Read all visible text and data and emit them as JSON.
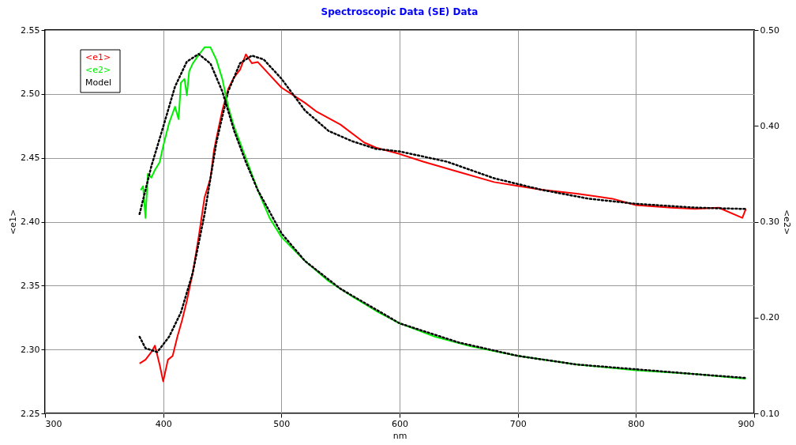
{
  "chart_data": {
    "type": "line",
    "title": "Spectroscopic Data (SE) Data",
    "xlabel": "nm",
    "ylabel": "<e1>",
    "y2label": "<e2>",
    "xlim": [
      300,
      900
    ],
    "xticks": [
      300,
      400,
      500,
      600,
      700,
      800,
      900
    ],
    "ylim": [
      2.25,
      2.55
    ],
    "yticks": [
      {
        "value": 2.25,
        "label": "2.25"
      },
      {
        "value": 2.3,
        "label": "2.30"
      },
      {
        "value": 2.35,
        "label": "2.35"
      },
      {
        "value": 2.4,
        "label": "2.40"
      },
      {
        "value": 2.45,
        "label": "2.45"
      },
      {
        "value": 2.5,
        "label": "2.50"
      },
      {
        "value": 2.55,
        "label": "2.55"
      }
    ],
    "y2lim": [
      0.1,
      0.5
    ],
    "y2ticks": [
      {
        "value": 0.1,
        "label": "0.10"
      },
      {
        "value": 0.2,
        "label": "0.20"
      },
      {
        "value": 0.3,
        "label": "0.30"
      },
      {
        "value": 0.4,
        "label": "0.40"
      },
      {
        "value": 0.5,
        "label": "0.50"
      }
    ],
    "grid": true,
    "legend": "top left",
    "marker": "none",
    "series": [
      {
        "name": "<e1>",
        "color": "#ff0000",
        "line_style": "solid",
        "x": [
          380,
          385,
          390,
          393,
          397,
          400,
          404,
          408,
          412,
          416,
          420,
          425,
          430,
          435,
          440,
          443,
          447,
          450,
          455,
          460,
          465,
          470,
          475,
          480,
          490,
          500,
          510,
          520,
          530,
          550,
          570,
          580,
          600,
          620,
          650,
          680,
          700,
          720,
          750,
          780,
          800,
          830,
          850,
          870,
          890,
          893
        ],
        "values": [
          2.289,
          2.292,
          2.298,
          2.303,
          2.288,
          2.275,
          2.292,
          2.295,
          2.31,
          2.323,
          2.338,
          2.36,
          2.388,
          2.419,
          2.434,
          2.456,
          2.474,
          2.487,
          2.504,
          2.513,
          2.519,
          2.531,
          2.524,
          2.525,
          2.515,
          2.505,
          2.499,
          2.493,
          2.486,
          2.476,
          2.462,
          2.458,
          2.453,
          2.447,
          2.439,
          2.431,
          2.428,
          2.425,
          2.422,
          2.418,
          2.413,
          2.411,
          2.41,
          2.411,
          2.403,
          2.41
        ]
      },
      {
        "name": "<e2>",
        "color": "#00ee00",
        "line_style": "solid",
        "axis": "y2",
        "x": [
          381,
          383,
          385,
          387,
          390,
          393,
          397,
          400,
          405,
          410,
          413,
          415,
          418,
          420,
          422,
          425,
          430,
          435,
          440,
          445,
          450,
          455,
          460,
          470,
          480,
          490,
          500,
          520,
          540,
          560,
          580,
          600,
          630,
          660,
          700,
          750,
          800,
          850,
          893
        ],
        "values": [
          0.333,
          0.337,
          0.304,
          0.35,
          0.346,
          0.354,
          0.362,
          0.379,
          0.403,
          0.42,
          0.407,
          0.445,
          0.449,
          0.432,
          0.457,
          0.465,
          0.474,
          0.482,
          0.482,
          0.469,
          0.449,
          0.42,
          0.399,
          0.366,
          0.333,
          0.304,
          0.284,
          0.259,
          0.238,
          0.222,
          0.207,
          0.194,
          0.18,
          0.17,
          0.16,
          0.151,
          0.145,
          0.141,
          0.136
        ]
      },
      {
        "name": "Model",
        "color": "#000000",
        "line_style": "dotted",
        "x": [
          380,
          385,
          395,
          405,
          415,
          425,
          435,
          445,
          455,
          465,
          475,
          485,
          500,
          520,
          540,
          560,
          580,
          600,
          640,
          680,
          720,
          760,
          800,
          850,
          893
        ],
        "values": [
          2.31,
          2.301,
          2.298,
          2.31,
          2.329,
          2.36,
          2.406,
          2.462,
          2.502,
          2.524,
          2.53,
          2.527,
          2.512,
          2.487,
          2.471,
          2.463,
          2.457,
          2.455,
          2.447,
          2.434,
          2.425,
          2.418,
          2.414,
          2.411,
          2.41
        ]
      },
      {
        "color": "#000000",
        "line_style": "dotted",
        "axis": "y2",
        "x": [
          380,
          390,
          400,
          410,
          420,
          430,
          440,
          450,
          460,
          470,
          480,
          500,
          520,
          550,
          600,
          650,
          700,
          750,
          800,
          850,
          893
        ],
        "values": [
          0.308,
          0.358,
          0.399,
          0.441,
          0.467,
          0.475,
          0.465,
          0.436,
          0.395,
          0.362,
          0.333,
          0.288,
          0.259,
          0.23,
          0.194,
          0.174,
          0.16,
          0.151,
          0.146,
          0.141,
          0.137
        ]
      }
    ]
  }
}
